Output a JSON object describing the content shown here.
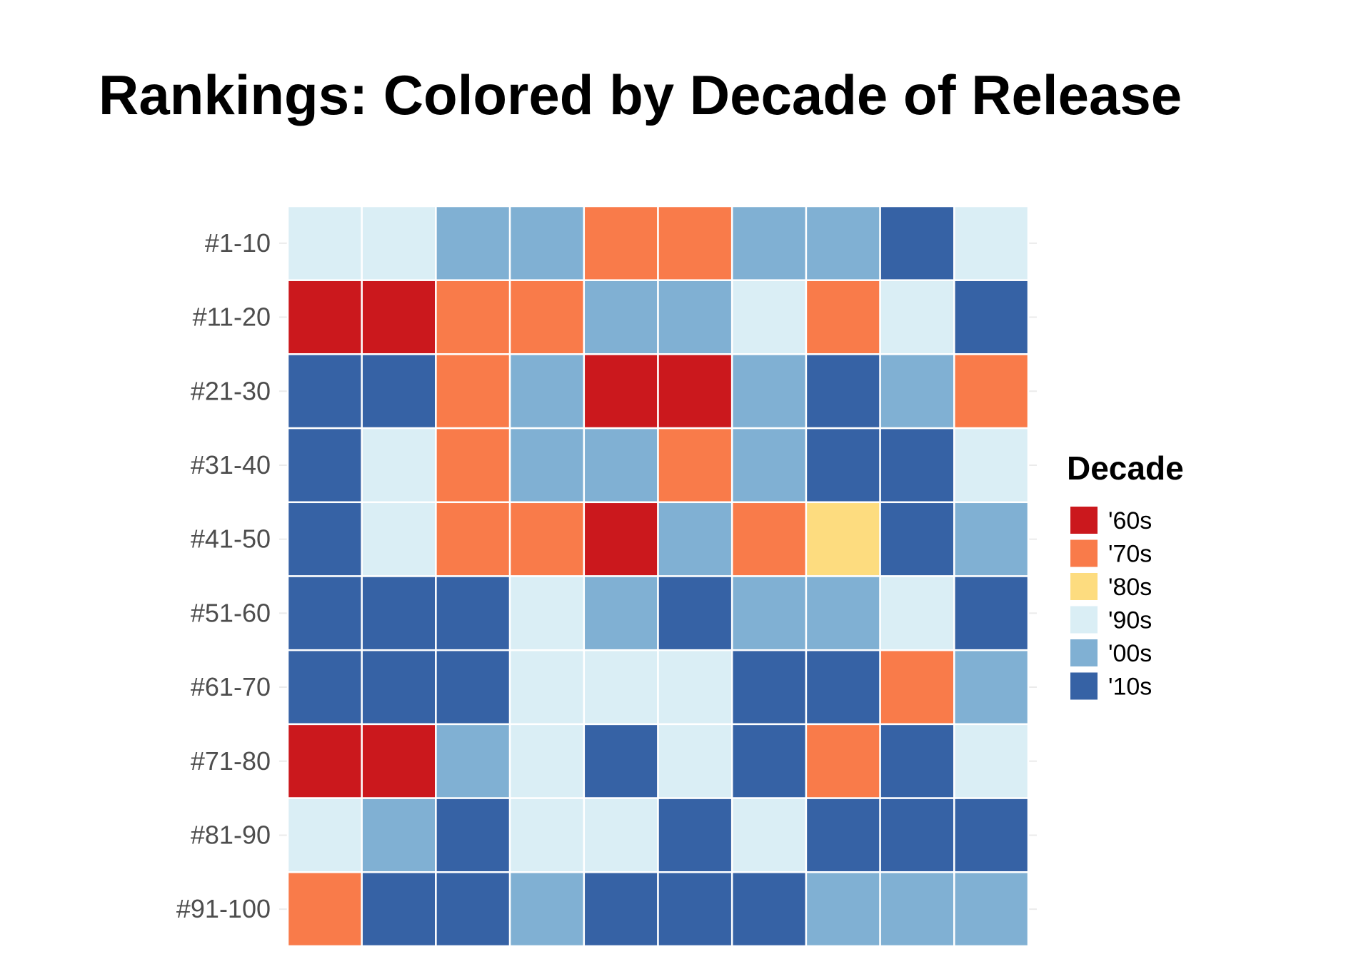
{
  "chart_data": {
    "type": "heatmap",
    "title": "Rankings: Colored by Decade of Release",
    "xlabel": "",
    "ylabel": "",
    "rows": [
      "#1-10",
      "#11-20",
      "#21-30",
      "#31-40",
      "#41-50",
      "#51-60",
      "#61-70",
      "#71-80",
      "#81-90",
      "#91-100"
    ],
    "columns": 10,
    "legend": {
      "title": "Decade",
      "position": "right",
      "items": [
        {
          "label": "'60s",
          "color": "#cb181d"
        },
        {
          "label": "'70s",
          "color": "#f97b4a"
        },
        {
          "label": "'80s",
          "color": "#fddc7f"
        },
        {
          "label": "'90s",
          "color": "#daeef5"
        },
        {
          "label": "'00s",
          "color": "#80b0d3"
        },
        {
          "label": "'10s",
          "color": "#3662a5"
        }
      ]
    },
    "values": [
      [
        "'90s",
        "'90s",
        "'00s",
        "'00s",
        "'70s",
        "'70s",
        "'00s",
        "'00s",
        "'10s",
        "'90s"
      ],
      [
        "'60s",
        "'60s",
        "'70s",
        "'70s",
        "'00s",
        "'00s",
        "'90s",
        "'70s",
        "'90s",
        "'10s"
      ],
      [
        "'10s",
        "'10s",
        "'70s",
        "'00s",
        "'60s",
        "'60s",
        "'00s",
        "'10s",
        "'00s",
        "'70s"
      ],
      [
        "'10s",
        "'90s",
        "'70s",
        "'00s",
        "'00s",
        "'70s",
        "'00s",
        "'10s",
        "'10s",
        "'90s"
      ],
      [
        "'10s",
        "'90s",
        "'70s",
        "'70s",
        "'60s",
        "'00s",
        "'70s",
        "'80s",
        "'10s",
        "'00s"
      ],
      [
        "'10s",
        "'10s",
        "'10s",
        "'90s",
        "'00s",
        "'10s",
        "'00s",
        "'00s",
        "'90s",
        "'10s"
      ],
      [
        "'10s",
        "'10s",
        "'10s",
        "'90s",
        "'90s",
        "'90s",
        "'10s",
        "'10s",
        "'70s",
        "'00s"
      ],
      [
        "'60s",
        "'60s",
        "'00s",
        "'90s",
        "'10s",
        "'90s",
        "'10s",
        "'70s",
        "'10s",
        "'90s"
      ],
      [
        "'90s",
        "'00s",
        "'10s",
        "'90s",
        "'90s",
        "'10s",
        "'90s",
        "'10s",
        "'10s",
        "'10s"
      ],
      [
        "'70s",
        "'10s",
        "'10s",
        "'00s",
        "'10s",
        "'10s",
        "'10s",
        "'00s",
        "'00s",
        "'00s"
      ]
    ],
    "grid": true
  }
}
